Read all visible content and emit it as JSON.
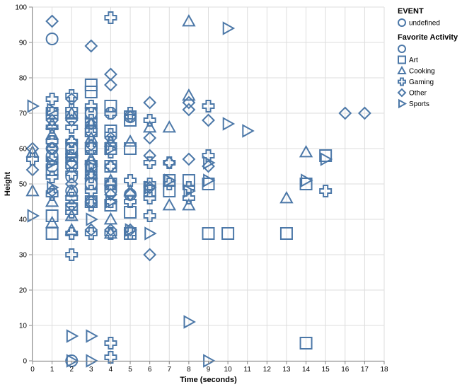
{
  "chart_data": {
    "type": "scatter",
    "xlabel": "Time (seconds)",
    "ylabel": "Height",
    "xlim": [
      0,
      18
    ],
    "ylim": [
      0,
      100
    ],
    "x_ticks": [
      0,
      1,
      2,
      3,
      4,
      5,
      6,
      7,
      8,
      9,
      10,
      11,
      12,
      13,
      14,
      15,
      16,
      17,
      18
    ],
    "y_ticks": [
      0,
      10,
      20,
      30,
      40,
      50,
      60,
      70,
      80,
      90,
      100
    ],
    "grid": true,
    "color": "#4c78a8",
    "legend_position": "right",
    "legend_event": {
      "title": "EVENT",
      "items": [
        {
          "label": "undefined",
          "shape": "circle"
        }
      ]
    },
    "legend_shape": {
      "title": "Favorite Activity",
      "items": [
        {
          "label": "",
          "shape": "circle"
        },
        {
          "label": "Art",
          "shape": "square"
        },
        {
          "label": "Cooking",
          "shape": "triangle-up"
        },
        {
          "label": "Gaming",
          "shape": "cross"
        },
        {
          "label": "Other",
          "shape": "diamond"
        },
        {
          "label": "Sports",
          "shape": "triangle-right"
        }
      ]
    },
    "series": [
      {
        "shape": "circle",
        "points": [
          [
            1,
            91
          ],
          [
            1,
            55
          ],
          [
            1,
            60
          ],
          [
            1,
            62
          ],
          [
            1,
            58
          ],
          [
            2,
            0
          ],
          [
            2,
            55
          ],
          [
            2,
            48
          ],
          [
            2,
            52
          ],
          [
            2,
            60
          ],
          [
            3,
            45
          ],
          [
            3,
            50
          ],
          [
            3,
            55
          ],
          [
            3,
            60
          ],
          [
            3,
            65
          ],
          [
            3,
            70
          ],
          [
            4,
            50
          ],
          [
            4,
            70
          ],
          [
            4,
            48
          ],
          [
            5,
            69
          ],
          [
            5,
            47
          ]
        ]
      },
      {
        "shape": "square",
        "points": [
          [
            1,
            36
          ],
          [
            1,
            41
          ],
          [
            1,
            70
          ],
          [
            1,
            54
          ],
          [
            2,
            43
          ],
          [
            2,
            56
          ],
          [
            2,
            60
          ],
          [
            2,
            70
          ],
          [
            3,
            45
          ],
          [
            3,
            50
          ],
          [
            3,
            55
          ],
          [
            3,
            60
          ],
          [
            3,
            65
          ],
          [
            3,
            70
          ],
          [
            3,
            76
          ],
          [
            3,
            78
          ],
          [
            4,
            44
          ],
          [
            4,
            50
          ],
          [
            4,
            55
          ],
          [
            4,
            60
          ],
          [
            4,
            65
          ],
          [
            4,
            72
          ],
          [
            5,
            36
          ],
          [
            5,
            42
          ],
          [
            5,
            60
          ],
          [
            5,
            68
          ],
          [
            6,
            48
          ],
          [
            7,
            48
          ],
          [
            7,
            51
          ],
          [
            8,
            51
          ],
          [
            9,
            36
          ],
          [
            9,
            50
          ],
          [
            10,
            36
          ],
          [
            13,
            36
          ],
          [
            14,
            5
          ],
          [
            14,
            50
          ],
          [
            15,
            58
          ]
        ]
      },
      {
        "shape": "triangle-up",
        "points": [
          [
            0,
            48
          ],
          [
            0,
            59
          ],
          [
            1,
            39
          ],
          [
            1,
            45
          ],
          [
            1,
            64
          ],
          [
            1,
            67
          ],
          [
            2,
            37
          ],
          [
            2,
            41
          ],
          [
            2,
            48
          ],
          [
            2,
            70
          ],
          [
            3,
            53
          ],
          [
            3,
            57
          ],
          [
            3,
            63
          ],
          [
            3,
            67
          ],
          [
            4,
            36
          ],
          [
            4,
            40
          ],
          [
            4,
            51
          ],
          [
            4,
            62
          ],
          [
            5,
            48
          ],
          [
            5,
            62
          ],
          [
            6,
            66
          ],
          [
            7,
            44
          ],
          [
            7,
            66
          ],
          [
            8,
            44
          ],
          [
            8,
            75
          ],
          [
            8,
            96
          ],
          [
            13,
            46
          ],
          [
            14,
            59
          ]
        ]
      },
      {
        "shape": "cross",
        "points": [
          [
            0,
            57
          ],
          [
            1,
            74
          ],
          [
            1,
            70
          ],
          [
            1,
            66
          ],
          [
            1,
            62
          ],
          [
            1,
            57
          ],
          [
            1,
            52
          ],
          [
            1,
            47
          ],
          [
            2,
            30
          ],
          [
            2,
            36
          ],
          [
            2,
            42
          ],
          [
            2,
            46
          ],
          [
            2,
            53
          ],
          [
            2,
            58
          ],
          [
            2,
            62
          ],
          [
            2,
            66
          ],
          [
            2,
            71
          ],
          [
            2,
            75
          ],
          [
            3,
            36
          ],
          [
            3,
            44
          ],
          [
            3,
            48
          ],
          [
            3,
            52
          ],
          [
            3,
            56
          ],
          [
            3,
            60
          ],
          [
            3,
            64
          ],
          [
            3,
            68
          ],
          [
            3,
            72
          ],
          [
            4,
            1
          ],
          [
            4,
            5
          ],
          [
            4,
            36
          ],
          [
            4,
            45
          ],
          [
            4,
            50
          ],
          [
            4,
            55
          ],
          [
            4,
            59
          ],
          [
            4,
            64
          ],
          [
            4,
            70
          ],
          [
            4,
            97
          ],
          [
            5,
            36
          ],
          [
            5,
            45
          ],
          [
            5,
            51
          ],
          [
            5,
            70
          ],
          [
            6,
            41
          ],
          [
            6,
            46
          ],
          [
            6,
            50
          ],
          [
            6,
            56
          ],
          [
            6,
            68
          ],
          [
            7,
            50
          ],
          [
            7,
            56
          ],
          [
            8,
            46
          ],
          [
            8,
            49
          ],
          [
            9,
            58
          ],
          [
            9,
            72
          ],
          [
            15,
            48
          ]
        ]
      },
      {
        "shape": "diamond",
        "points": [
          [
            0,
            54
          ],
          [
            0,
            60
          ],
          [
            1,
            96
          ],
          [
            1,
            48
          ],
          [
            1,
            60
          ],
          [
            1,
            68
          ],
          [
            2,
            44
          ],
          [
            2,
            50
          ],
          [
            2,
            56
          ],
          [
            2,
            62
          ],
          [
            2,
            68
          ],
          [
            2,
            74
          ],
          [
            3,
            37
          ],
          [
            3,
            45
          ],
          [
            3,
            53
          ],
          [
            3,
            61
          ],
          [
            3,
            67
          ],
          [
            3,
            89
          ],
          [
            4,
            37
          ],
          [
            4,
            47
          ],
          [
            4,
            55
          ],
          [
            4,
            63
          ],
          [
            4,
            78
          ],
          [
            4,
            81
          ],
          [
            5,
            37
          ],
          [
            5,
            47
          ],
          [
            5,
            69
          ],
          [
            6,
            30
          ],
          [
            6,
            49
          ],
          [
            6,
            58
          ],
          [
            6,
            63
          ],
          [
            6,
            73
          ],
          [
            7,
            56
          ],
          [
            8,
            57
          ],
          [
            8,
            71
          ],
          [
            8,
            73
          ],
          [
            9,
            55
          ],
          [
            9,
            68
          ],
          [
            16,
            70
          ],
          [
            17,
            70
          ]
        ]
      },
      {
        "shape": "triangle-right",
        "points": [
          [
            0,
            41
          ],
          [
            0,
            72
          ],
          [
            1,
            49
          ],
          [
            1,
            56
          ],
          [
            1,
            71
          ],
          [
            2,
            0
          ],
          [
            2,
            7
          ],
          [
            2,
            58
          ],
          [
            3,
            0
          ],
          [
            3,
            7
          ],
          [
            3,
            40
          ],
          [
            3,
            55
          ],
          [
            4,
            45
          ],
          [
            4,
            60
          ],
          [
            5,
            37
          ],
          [
            6,
            36
          ],
          [
            6,
            49
          ],
          [
            7,
            51
          ],
          [
            8,
            11
          ],
          [
            8,
            48
          ],
          [
            9,
            0
          ],
          [
            9,
            51
          ],
          [
            9,
            56
          ],
          [
            10,
            67
          ],
          [
            10,
            94
          ],
          [
            11,
            65
          ],
          [
            14,
            51
          ],
          [
            15,
            57
          ]
        ]
      }
    ]
  }
}
